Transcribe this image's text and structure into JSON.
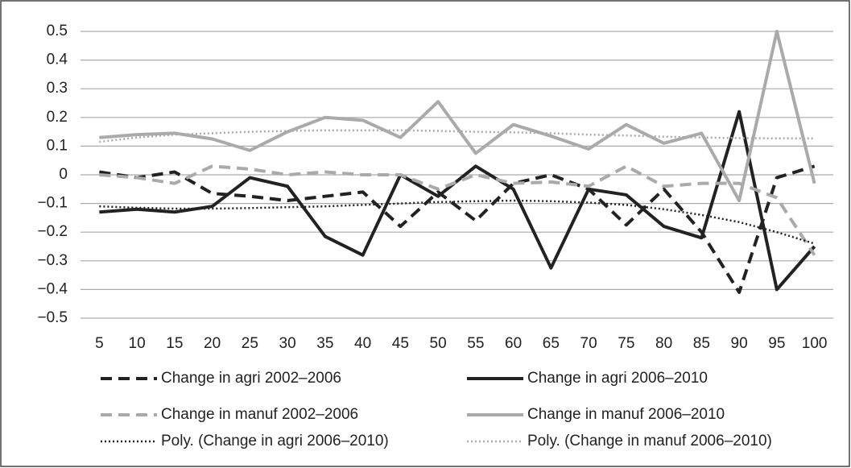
{
  "chart_data": {
    "type": "line",
    "categories": [
      "5",
      "10",
      "15",
      "20",
      "25",
      "30",
      "35",
      "40",
      "45",
      "50",
      "55",
      "60",
      "65",
      "70",
      "75",
      "80",
      "85",
      "90",
      "95",
      "100"
    ],
    "ylim": [
      -0.5,
      0.5
    ],
    "yticks": [
      0.5,
      0.4,
      0.3,
      0.2,
      0.1,
      0,
      {
        "value": -0.1,
        "label": "−0.1"
      },
      {
        "value": -0.2,
        "label": "−0.2"
      },
      {
        "value": -0.3,
        "label": "−0.3"
      },
      {
        "value": -0.4,
        "label": "−0.4"
      },
      {
        "value": -0.5,
        "label": "−0.5"
      }
    ],
    "grid": true,
    "series": [
      {
        "name": "Change in agri 2002–2006",
        "color": "#222222",
        "dash": "dashed",
        "values": [
          0.01,
          -0.01,
          0.01,
          -0.065,
          -0.075,
          -0.09,
          -0.075,
          -0.06,
          -0.18,
          -0.06,
          -0.16,
          -0.03,
          0.0,
          -0.05,
          -0.175,
          -0.05,
          -0.2,
          -0.41,
          -0.01,
          0.03
        ]
      },
      {
        "name": "Change in agri 2006–2010",
        "color": "#222222",
        "dash": "solid",
        "values": [
          -0.13,
          -0.12,
          -0.13,
          -0.11,
          -0.01,
          -0.04,
          -0.215,
          -0.28,
          0.0,
          -0.075,
          0.03,
          -0.05,
          -0.325,
          -0.05,
          -0.07,
          -0.18,
          -0.22,
          0.22,
          -0.4,
          -0.25
        ]
      },
      {
        "name": "Change in manuf 2002–2006",
        "color": "#aaaaaa",
        "dash": "dashed",
        "values": [
          0.0,
          -0.01,
          -0.03,
          0.03,
          0.02,
          0.0,
          0.01,
          0.0,
          0.0,
          -0.05,
          0.0,
          -0.03,
          -0.025,
          -0.04,
          0.03,
          -0.04,
          -0.03,
          -0.03,
          -0.08,
          -0.28
        ]
      },
      {
        "name": "Change in manuf 2006–2010",
        "color": "#aaaaaa",
        "dash": "solid",
        "values": [
          0.13,
          0.14,
          0.145,
          0.125,
          0.085,
          0.15,
          0.2,
          0.19,
          0.13,
          0.255,
          0.075,
          0.175,
          0.135,
          0.09,
          0.175,
          0.11,
          0.145,
          -0.09,
          0.5,
          -0.03
        ]
      },
      {
        "name": "Poly. (Change in agri 2006–2010)",
        "color": "#222222",
        "dash": "dotted",
        "values": [
          -0.11,
          -0.115,
          -0.118,
          -0.118,
          -0.116,
          -0.113,
          -0.11,
          -0.105,
          -0.1,
          -0.095,
          -0.092,
          -0.09,
          -0.092,
          -0.097,
          -0.105,
          -0.12,
          -0.14,
          -0.165,
          -0.2,
          -0.24
        ]
      },
      {
        "name": "Poly. (Change in manuf 2006–2010)",
        "color": "#aaaaaa",
        "dash": "dotted",
        "values": [
          0.115,
          0.13,
          0.14,
          0.145,
          0.15,
          0.153,
          0.155,
          0.155,
          0.155,
          0.153,
          0.15,
          0.148,
          0.145,
          0.14,
          0.137,
          0.133,
          0.13,
          0.128,
          0.127,
          0.127
        ]
      }
    ]
  }
}
